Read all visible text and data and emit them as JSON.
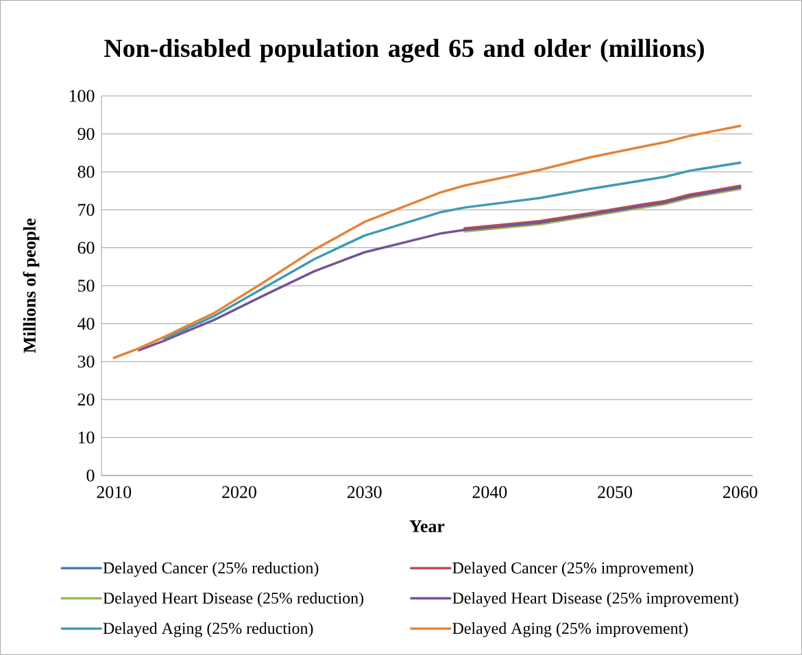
{
  "chart_data": {
    "type": "line",
    "title": "Non-disabled population aged 65 and older (millions)",
    "xlabel": "Year",
    "ylabel": "Millions of people",
    "x": [
      2010,
      2012,
      2014,
      2018,
      2022,
      2026,
      2030,
      2036,
      2038,
      2044,
      2048,
      2052,
      2054,
      2056,
      2060
    ],
    "series": [
      {
        "name": "Delayed Cancer (25% reduction)",
        "color": "#4a7ebb",
        "values": [
          null,
          null,
          null,
          null,
          null,
          null,
          null,
          null,
          null,
          null,
          null,
          null,
          null,
          null,
          null
        ]
      },
      {
        "name": "Delayed Cancer (25% improvement)",
        "color": "#be4b48",
        "values": [
          null,
          null,
          null,
          null,
          null,
          null,
          null,
          null,
          65.1,
          67,
          69.1,
          71.3,
          72.3,
          74,
          76.3
        ]
      },
      {
        "name": "Delayed Heart Disease (25% reduction)",
        "color": "#98b954",
        "values": [
          null,
          null,
          null,
          null,
          null,
          null,
          null,
          null,
          64.3,
          66.2,
          68.3,
          70.5,
          71.5,
          73.2,
          75.5
        ]
      },
      {
        "name": "Delayed Heart Disease (25% improvement)",
        "color": "#735595",
        "values": [
          null,
          33,
          35.5,
          41,
          47.5,
          53.8,
          58.8,
          63.7,
          64.7,
          66.6,
          68.7,
          70.9,
          71.9,
          73.6,
          75.9
        ]
      },
      {
        "name": "Delayed Aging (25% reduction)",
        "color": "#3d9bb3",
        "values": [
          null,
          null,
          36,
          42,
          49.5,
          57,
          63.2,
          69.3,
          70.6,
          73.1,
          75.5,
          77.6,
          78.7,
          80.3,
          82.4
        ]
      },
      {
        "name": "Delayed Aging (25% improvement)",
        "color": "#e3843a",
        "values": [
          31,
          33.5,
          36.5,
          42.8,
          51,
          59.5,
          66.8,
          74.5,
          76.4,
          80.5,
          83.8,
          86.5,
          87.8,
          89.5,
          92.1
        ]
      }
    ],
    "xlim": [
      2009,
      2061
    ],
    "xticks": [
      2010,
      2020,
      2030,
      2040,
      2050,
      2060
    ],
    "ylim": [
      0,
      100
    ],
    "yticks": [
      0,
      10,
      20,
      30,
      40,
      50,
      60,
      70,
      80,
      90,
      100
    ],
    "grid": "y",
    "legend": "bottom",
    "marker": "none",
    "line_style": "solid"
  }
}
